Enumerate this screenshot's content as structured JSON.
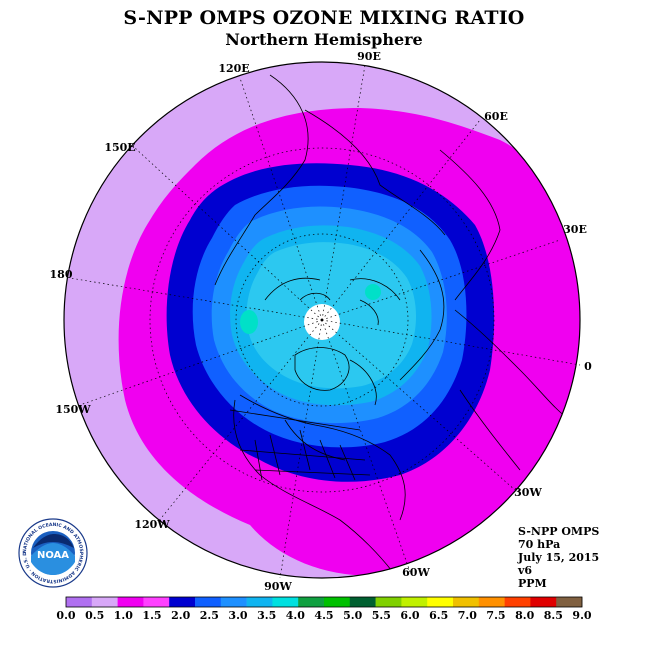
{
  "title": "S-NPP OMPS OZONE MIXING RATIO",
  "subtitle": "Northern Hemisphere",
  "longitude_labels": [
    {
      "text": "90E",
      "lon": 90
    },
    {
      "text": "60E",
      "lon": 60
    },
    {
      "text": "30E",
      "lon": 30
    },
    {
      "text": "0",
      "lon": 0
    },
    {
      "text": "30W",
      "lon": -30
    },
    {
      "text": "60W",
      "lon": -60
    },
    {
      "text": "90W",
      "lon": -90
    },
    {
      "text": "120W",
      "lon": -120
    },
    {
      "text": "150W",
      "lon": -150
    },
    {
      "text": "180",
      "lon": 180
    },
    {
      "text": "150E",
      "lon": 150
    },
    {
      "text": "120E",
      "lon": 120
    }
  ],
  "info": {
    "instrument": "S-NPP OMPS",
    "level": "70 hPa",
    "date": "July 15, 2015",
    "version": "v6",
    "units": "PPM"
  },
  "logo": {
    "text": "NOAA",
    "ring_text": "NATIONAL OCEANIC AND ATMOSPHERIC ADMINISTRATION · U.S. DEPARTMENT OF COMMERCE"
  },
  "colorbar": {
    "ticks": [
      "0.0",
      "0.5",
      "1.0",
      "1.5",
      "2.0",
      "2.5",
      "3.0",
      "3.5",
      "4.0",
      "4.5",
      "5.0",
      "5.5",
      "6.0",
      "6.5",
      "7.0",
      "7.5",
      "8.0",
      "8.5",
      "9.0"
    ],
    "colors": [
      "#b070f0",
      "#d8a8f8",
      "#f000f0",
      "#ff40ff",
      "#0000d0",
      "#1060ff",
      "#1e90ff",
      "#10b4f0",
      "#00e0e0",
      "#10a040",
      "#00c000",
      "#006030",
      "#80d000",
      "#c0f000",
      "#ffff00",
      "#f0c000",
      "#ff9000",
      "#ff4000",
      "#e00000",
      "#806040"
    ]
  },
  "map_data": {
    "projection": "north polar stereographic",
    "level_colors": {
      "0.5-1.0": "#d8a8f8",
      "1.0-1.5": "#f000f0",
      "1.5-2.0": "#0000d0",
      "2.0-2.5": "#1060ff",
      "2.5-3.0": "#1e90ff",
      "3.0-3.5": "#10b4f0",
      "3.5-4.0": "#00e0e0"
    }
  }
}
